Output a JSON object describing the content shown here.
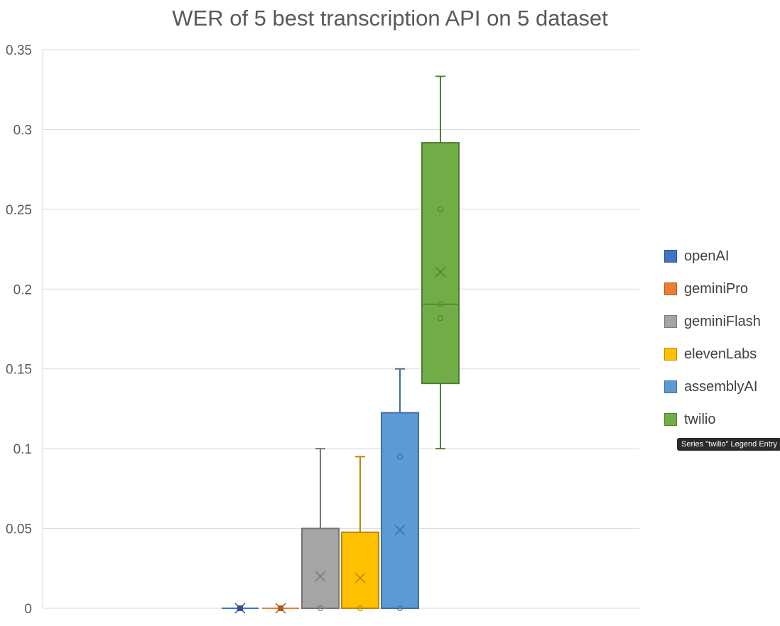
{
  "chart_data": {
    "type": "box",
    "title": "WER of 5 best transcription API on 5 dataset",
    "ylim": [
      0,
      0.35
    ],
    "yticks": [
      "0",
      "0.05",
      "0.1",
      "0.15",
      "0.2",
      "0.25",
      "0.3",
      "0.35"
    ],
    "grid": true,
    "legend_position": "right",
    "series": [
      {
        "name": "openAI",
        "color": "#4472C4",
        "min": 0,
        "q1": 0,
        "median": 0,
        "q3": 0,
        "max": 0,
        "mean": 0,
        "points": [
          0
        ]
      },
      {
        "name": "geminiPro",
        "color": "#ED7D31",
        "min": 0,
        "q1": 0,
        "median": 0,
        "q3": 0,
        "max": 0,
        "mean": 0,
        "points": [
          0
        ]
      },
      {
        "name": "geminiFlash",
        "color": "#A5A5A5",
        "min": 0,
        "q1": 0,
        "median": 0,
        "q3": 0.05,
        "max": 0.1,
        "mean": 0.02,
        "points": [
          0
        ]
      },
      {
        "name": "elevenLabs",
        "color": "#FFC000",
        "min": 0,
        "q1": 0,
        "median": 0,
        "q3": 0.0476,
        "max": 0.095,
        "mean": 0.019,
        "points": [
          0
        ]
      },
      {
        "name": "assemblyAI",
        "color": "#5B9BD5",
        "min": 0,
        "q1": 0,
        "median": 0,
        "q3": 0.1225,
        "max": 0.15,
        "mean": 0.049,
        "points": [
          0,
          0.095
        ]
      },
      {
        "name": "twilio",
        "color": "#70AD47",
        "min": 0.1,
        "q1": 0.1409,
        "median": 0.1905,
        "q3": 0.2917,
        "max": 0.3333,
        "mean": 0.2107,
        "points": [
          0.1818,
          0.1905,
          0.25
        ]
      }
    ]
  },
  "tooltip": "Series \"twilio\" Legend Entry"
}
